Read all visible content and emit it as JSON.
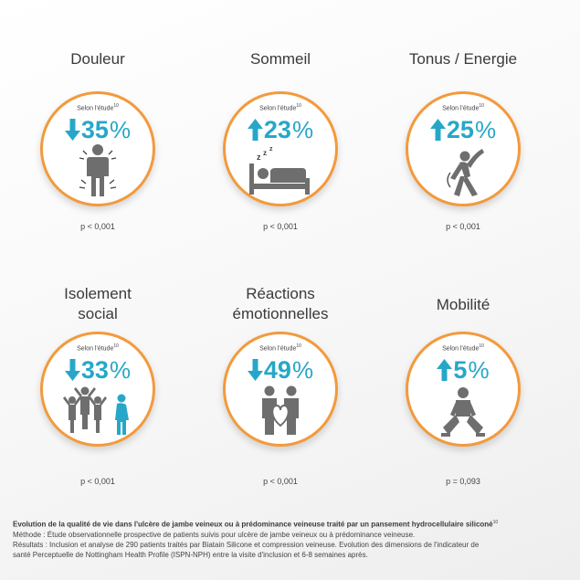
{
  "cards": [
    {
      "title": "Douleur",
      "study": "Selon l'étude",
      "ref": "10",
      "value": "35",
      "pct": "%",
      "direction": "down",
      "icon": "pain-person-icon",
      "p": "p < 0,001"
    },
    {
      "title": "Sommeil",
      "study": "Selon l'étude",
      "ref": "10",
      "value": "23",
      "pct": "%",
      "direction": "up",
      "icon": "sleep-bed-icon",
      "p": "p < 0,001"
    },
    {
      "title": "Tonus / Energie",
      "study": "Selon l'étude",
      "ref": "10",
      "value": "25",
      "pct": "%",
      "direction": "up",
      "icon": "stretching-person-icon",
      "p": "p < 0,001"
    },
    {
      "title": "Isolement\nsocial",
      "study": "Selon l'étude",
      "ref": "10",
      "value": "33",
      "pct": "%",
      "direction": "down",
      "icon": "group-isolation-icon",
      "p": "p < 0,001"
    },
    {
      "title": "Réactions\némotionnelles",
      "study": "Selon l'étude",
      "ref": "10",
      "value": "49",
      "pct": "%",
      "direction": "down",
      "icon": "couple-heart-icon",
      "p": "p < 0,001"
    },
    {
      "title": "Mobilité",
      "study": "Selon l'étude",
      "ref": "10",
      "value": "5",
      "pct": "%",
      "direction": "up",
      "icon": "squatting-person-icon",
      "p": "p = 0,093"
    }
  ],
  "footer": {
    "headline": "Evolution de la qualité de vie dans l'ulcère de jambe veineux ou à prédominance veineuse traité par un pansement hydrocellulaire siliconé",
    "headline_ref": "10",
    "method": "Méthode :  Étude observationnelle prospective de patients suivis pour ulcère de jambe veineux ou à prédominance veineuse.",
    "results_1": "Résultats : Inclusion et analyse de 290 patients traités par Biatain Silicone et compression veineuse. Evolution des dimensions de l'indicateur de",
    "results_2": "santé Perceptuelle de Nottingham Health Profile (ISPN-NPH) entre la visite d'inclusion et 6-8 semaines après."
  },
  "colors": {
    "accent": "#27a7c8",
    "ring": "#f39a3c",
    "icon": "#6e6e6e",
    "icon_highlight": "#27a7c8"
  }
}
